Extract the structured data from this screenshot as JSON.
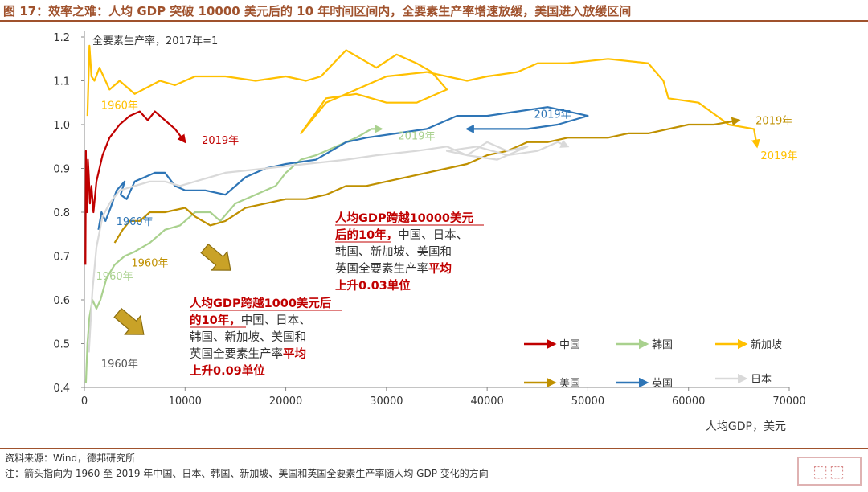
{
  "header": {
    "title": "图 17：效率之难：人均 GDP 突破 10000 美元后的 10 年时间区间内，全要素生产率增速放缓，美国进入放缓区间"
  },
  "footer": {
    "source": "资料来源：Wind，德邦研究所",
    "note": "注：箭头指向为 1960 至 2019 年中国、日本、韩国、新加坡、美国和英国全要素生产率随人均 GDP 变化的方向"
  },
  "stamp_text": "德邦",
  "colors": {
    "china": "#c00000",
    "korea": "#a9d18e",
    "singapore": "#ffc000",
    "usa": "#bf9000",
    "uk": "#2e75b6",
    "japan": "#d9d9d9",
    "accent": "#a0522d",
    "annotation_red": "#c00000"
  },
  "chart_data": {
    "type": "line",
    "title": "",
    "xlabel": "人均GDP，美元",
    "ylabel": "全要素生产率，2017年=1",
    "xlim": [
      0,
      70000
    ],
    "ylim": [
      0.4,
      1.2
    ],
    "x_ticks": [
      0,
      10000,
      20000,
      30000,
      40000,
      50000,
      60000,
      70000
    ],
    "y_ticks": [
      0.4,
      0.5,
      0.6,
      0.7,
      0.8,
      0.9,
      1.0,
      1.1,
      1.2
    ],
    "x_tick_labels": [
      "0",
      "10000",
      "20000",
      "30000",
      "40000",
      "50000",
      "60000",
      "70000"
    ],
    "y_tick_labels": [
      "0.4",
      "0.5",
      "0.6",
      "0.7",
      "0.8",
      "0.9",
      "1.0",
      "1.1",
      "1.2"
    ],
    "grid": false,
    "legend_position": "bottom-right",
    "series": [
      {
        "name": "中国",
        "key": "china",
        "points": [
          [
            100,
            0.68
          ],
          [
            150,
            0.94
          ],
          [
            200,
            0.8
          ],
          [
            250,
            0.87
          ],
          [
            300,
            0.8
          ],
          [
            350,
            0.92
          ],
          [
            450,
            0.88
          ],
          [
            550,
            0.82
          ],
          [
            700,
            0.86
          ],
          [
            900,
            0.8
          ],
          [
            1200,
            0.87
          ],
          [
            1800,
            0.93
          ],
          [
            2500,
            0.97
          ],
          [
            3500,
            1.0
          ],
          [
            4500,
            1.02
          ],
          [
            5500,
            1.03
          ],
          [
            6300,
            1.01
          ],
          [
            7000,
            1.03
          ],
          [
            8000,
            1.01
          ],
          [
            9000,
            0.99
          ],
          [
            10000,
            0.96
          ]
        ],
        "start_label": "",
        "end_label": "2019年",
        "end_label_at": [
          13500,
          0.965
        ],
        "arrow": true
      },
      {
        "name": "韩国",
        "key": "korea",
        "points": [
          [
            150,
            0.41
          ],
          [
            300,
            0.5
          ],
          [
            500,
            0.56
          ],
          [
            800,
            0.6
          ],
          [
            1200,
            0.58
          ],
          [
            1600,
            0.6
          ],
          [
            2200,
            0.65
          ],
          [
            3000,
            0.68
          ],
          [
            4000,
            0.7
          ],
          [
            5000,
            0.71
          ],
          [
            6500,
            0.73
          ],
          [
            8000,
            0.76
          ],
          [
            9500,
            0.77
          ],
          [
            11000,
            0.8
          ],
          [
            12500,
            0.8
          ],
          [
            13500,
            0.78
          ],
          [
            15000,
            0.82
          ],
          [
            17000,
            0.84
          ],
          [
            19000,
            0.86
          ],
          [
            20000,
            0.89
          ],
          [
            21500,
            0.92
          ],
          [
            23000,
            0.93
          ],
          [
            25000,
            0.95
          ],
          [
            27000,
            0.97
          ],
          [
            28500,
            0.99
          ],
          [
            29500,
            0.99
          ]
        ],
        "start_label": "1960年",
        "start_label_at": [
          3000,
          0.655
        ],
        "end_label": "2019年",
        "end_label_at": [
          33000,
          0.975
        ],
        "arrow": true
      },
      {
        "name": "新加坡",
        "key": "singapore",
        "points": [
          [
            300,
            1.02
          ],
          [
            500,
            1.18
          ],
          [
            700,
            1.11
          ],
          [
            1000,
            1.1
          ],
          [
            1500,
            1.13
          ],
          [
            2500,
            1.08
          ],
          [
            3500,
            1.1
          ],
          [
            5000,
            1.07
          ],
          [
            7500,
            1.1
          ],
          [
            9000,
            1.09
          ],
          [
            11000,
            1.11
          ],
          [
            14000,
            1.11
          ],
          [
            17000,
            1.1
          ],
          [
            20000,
            1.11
          ],
          [
            22000,
            1.1
          ],
          [
            23500,
            1.11
          ],
          [
            26000,
            1.17
          ],
          [
            29000,
            1.13
          ],
          [
            31000,
            1.16
          ],
          [
            33000,
            1.14
          ],
          [
            34500,
            1.12
          ],
          [
            36000,
            1.08
          ],
          [
            33000,
            1.05
          ],
          [
            30000,
            1.05
          ],
          [
            27000,
            1.07
          ],
          [
            24000,
            1.06
          ],
          [
            21500,
            0.98
          ],
          [
            24000,
            1.05
          ],
          [
            27000,
            1.08
          ],
          [
            30000,
            1.11
          ],
          [
            34000,
            1.12
          ],
          [
            38000,
            1.1
          ],
          [
            40000,
            1.11
          ],
          [
            43000,
            1.12
          ],
          [
            45000,
            1.14
          ],
          [
            48000,
            1.14
          ],
          [
            52000,
            1.15
          ],
          [
            56000,
            1.14
          ],
          [
            57500,
            1.1
          ],
          [
            58000,
            1.06
          ],
          [
            61000,
            1.05
          ],
          [
            64000,
            1.0
          ],
          [
            66500,
            0.99
          ],
          [
            66800,
            0.95
          ]
        ],
        "start_label": "1960年",
        "start_label_at": [
          3500,
          1.045
        ],
        "end_label": "2019年",
        "end_label_at": [
          69000,
          0.93
        ],
        "arrow": true
      },
      {
        "name": "美国",
        "key": "usa",
        "points": [
          [
            3000,
            0.73
          ],
          [
            3800,
            0.76
          ],
          [
            4500,
            0.78
          ],
          [
            5500,
            0.78
          ],
          [
            6500,
            0.8
          ],
          [
            8000,
            0.8
          ],
          [
            10000,
            0.81
          ],
          [
            11000,
            0.79
          ],
          [
            12500,
            0.77
          ],
          [
            14000,
            0.78
          ],
          [
            16000,
            0.81
          ],
          [
            18000,
            0.82
          ],
          [
            20000,
            0.83
          ],
          [
            22000,
            0.83
          ],
          [
            24000,
            0.84
          ],
          [
            26000,
            0.86
          ],
          [
            28000,
            0.86
          ],
          [
            30000,
            0.87
          ],
          [
            32000,
            0.88
          ],
          [
            34000,
            0.89
          ],
          [
            36000,
            0.9
          ],
          [
            38000,
            0.91
          ],
          [
            40000,
            0.93
          ],
          [
            42000,
            0.94
          ],
          [
            44000,
            0.96
          ],
          [
            46000,
            0.96
          ],
          [
            48000,
            0.97
          ],
          [
            50000,
            0.97
          ],
          [
            52000,
            0.97
          ],
          [
            54000,
            0.98
          ],
          [
            56000,
            0.98
          ],
          [
            58000,
            0.99
          ],
          [
            60000,
            1.0
          ],
          [
            62500,
            1.0
          ],
          [
            65000,
            1.01
          ]
        ],
        "start_label": "1960年",
        "start_label_at": [
          6500,
          0.685
        ],
        "end_label": "2019年",
        "end_label_at": [
          68500,
          1.01
        ],
        "arrow": true
      },
      {
        "name": "英国",
        "key": "uk",
        "points": [
          [
            1400,
            0.76
          ],
          [
            1700,
            0.8
          ],
          [
            2100,
            0.78
          ],
          [
            2600,
            0.81
          ],
          [
            3200,
            0.85
          ],
          [
            4000,
            0.87
          ],
          [
            3600,
            0.84
          ],
          [
            4200,
            0.83
          ],
          [
            5000,
            0.87
          ],
          [
            6000,
            0.88
          ],
          [
            7000,
            0.89
          ],
          [
            8000,
            0.89
          ],
          [
            9000,
            0.86
          ],
          [
            10000,
            0.85
          ],
          [
            11000,
            0.85
          ],
          [
            12000,
            0.85
          ],
          [
            14000,
            0.84
          ],
          [
            16000,
            0.88
          ],
          [
            18000,
            0.9
          ],
          [
            20000,
            0.91
          ],
          [
            23000,
            0.92
          ],
          [
            26000,
            0.96
          ],
          [
            28000,
            0.97
          ],
          [
            31000,
            0.98
          ],
          [
            34000,
            0.99
          ],
          [
            37000,
            1.02
          ],
          [
            40000,
            1.02
          ],
          [
            43000,
            1.03
          ],
          [
            46000,
            1.04
          ],
          [
            48000,
            1.03
          ],
          [
            50000,
            1.02
          ],
          [
            47000,
            1.0
          ],
          [
            44000,
            0.99
          ],
          [
            42000,
            0.99
          ],
          [
            39000,
            0.99
          ],
          [
            38000,
            0.99
          ]
        ],
        "start_label": "1960年",
        "start_label_at": [
          5000,
          0.78
        ],
        "end_label": "2019年",
        "end_label_at": [
          46500,
          1.025
        ],
        "arrow": true
      },
      {
        "name": "日本",
        "key": "japan",
        "points": [
          [
            450,
            0.48
          ],
          [
            800,
            0.62
          ],
          [
            1200,
            0.72
          ],
          [
            1800,
            0.79
          ],
          [
            2500,
            0.82
          ],
          [
            3500,
            0.85
          ],
          [
            5000,
            0.86
          ],
          [
            6500,
            0.87
          ],
          [
            8000,
            0.87
          ],
          [
            9500,
            0.86
          ],
          [
            11000,
            0.87
          ],
          [
            14000,
            0.89
          ],
          [
            18000,
            0.9
          ],
          [
            22000,
            0.91
          ],
          [
            26000,
            0.92
          ],
          [
            29000,
            0.93
          ],
          [
            33000,
            0.94
          ],
          [
            36000,
            0.95
          ],
          [
            38000,
            0.93
          ],
          [
            40000,
            0.96
          ],
          [
            42000,
            0.94
          ],
          [
            44000,
            0.95
          ],
          [
            41000,
            0.92
          ],
          [
            38000,
            0.93
          ],
          [
            36000,
            0.94
          ],
          [
            39000,
            0.95
          ],
          [
            42000,
            0.93
          ],
          [
            45000,
            0.94
          ],
          [
            47000,
            0.96
          ],
          [
            48000,
            0.95
          ]
        ],
        "start_label": "1960年",
        "start_label_at": [
          3500,
          0.455
        ],
        "end_label": "",
        "arrow": true
      }
    ],
    "legend": [
      {
        "key": "china",
        "label": "中国"
      },
      {
        "key": "korea",
        "label": "韩国"
      },
      {
        "key": "singapore",
        "label": "新加坡"
      },
      {
        "key": "usa",
        "label": "美国"
      },
      {
        "key": "uk",
        "label": "英国"
      },
      {
        "key": "japan",
        "label": "日本"
      }
    ],
    "annotations": [
      {
        "key": "ann1000",
        "lines": [
          [
            {
              "t": "人均GDP跨越1000美元后",
              "red": true
            }
          ],
          [
            {
              "t": "的10年，",
              "red": true
            },
            {
              "t": "中国、日本、",
              "red": false
            }
          ],
          [
            {
              "t": "韩国、新加坡、美国和",
              "red": false
            }
          ],
          [
            {
              "t": "英国全要素生产率",
              "red": false
            },
            {
              "t": "平均",
              "red": true
            }
          ],
          [
            {
              "t": "上升0.09单位",
              "red": true
            }
          ]
        ]
      },
      {
        "key": "ann10000",
        "lines": [
          [
            {
              "t": "人均GDP跨越10000美元",
              "red": true
            }
          ],
          [
            {
              "t": "后的10年，",
              "red": true
            },
            {
              "t": "中国、日本、",
              "red": false
            }
          ],
          [
            {
              "t": "韩国、新加坡、美国和",
              "red": false
            }
          ],
          [
            {
              "t": "英国全要素生产率",
              "red": false
            },
            {
              "t": "平均",
              "red": true
            }
          ],
          [
            {
              "t": "上升0.03单位",
              "red": true
            }
          ]
        ]
      }
    ]
  }
}
